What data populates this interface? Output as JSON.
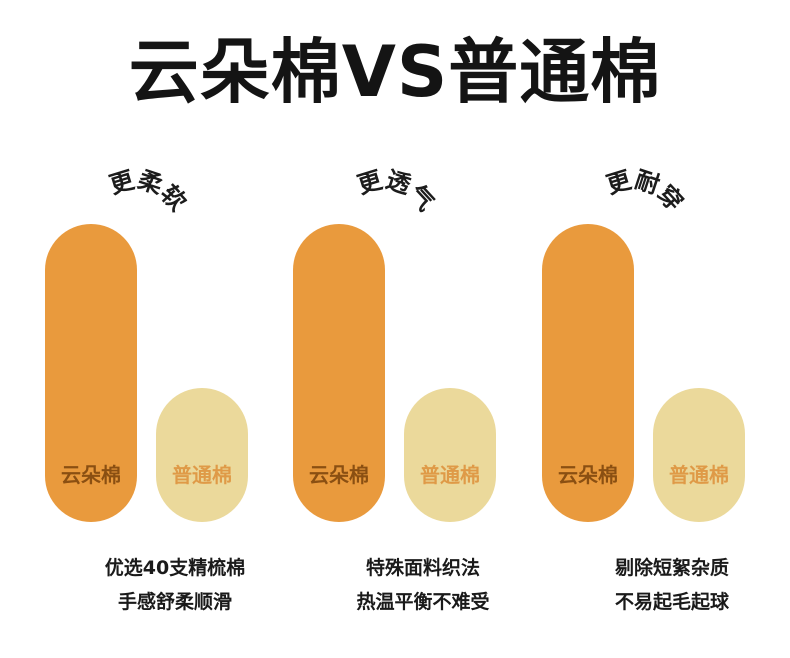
{
  "title": "云朵棉VS普通棉",
  "colors": {
    "cloud_bar": "#e99a3d",
    "normal_bar": "#ebd99b",
    "cloud_label": "#8a4f12",
    "normal_label": "#df9a47"
  },
  "chart_data": [
    {
      "type": "bar",
      "title": "更柔软",
      "categories": [
        "云朵棉",
        "普通棉"
      ],
      "values": [
        1.0,
        0.45
      ],
      "description": [
        "优选40支精梳棉",
        "手感舒柔顺滑"
      ]
    },
    {
      "type": "bar",
      "title": "更透气",
      "categories": [
        "云朵棉",
        "普通棉"
      ],
      "values": [
        1.0,
        0.45
      ],
      "description": [
        "特殊面料织法",
        "热温平衡不难受"
      ]
    },
    {
      "type": "bar",
      "title": "更耐穿",
      "categories": [
        "云朵棉",
        "普通棉"
      ],
      "values": [
        1.0,
        0.45
      ],
      "description": [
        "剔除短絮杂质",
        "不易起毛起球"
      ]
    }
  ]
}
